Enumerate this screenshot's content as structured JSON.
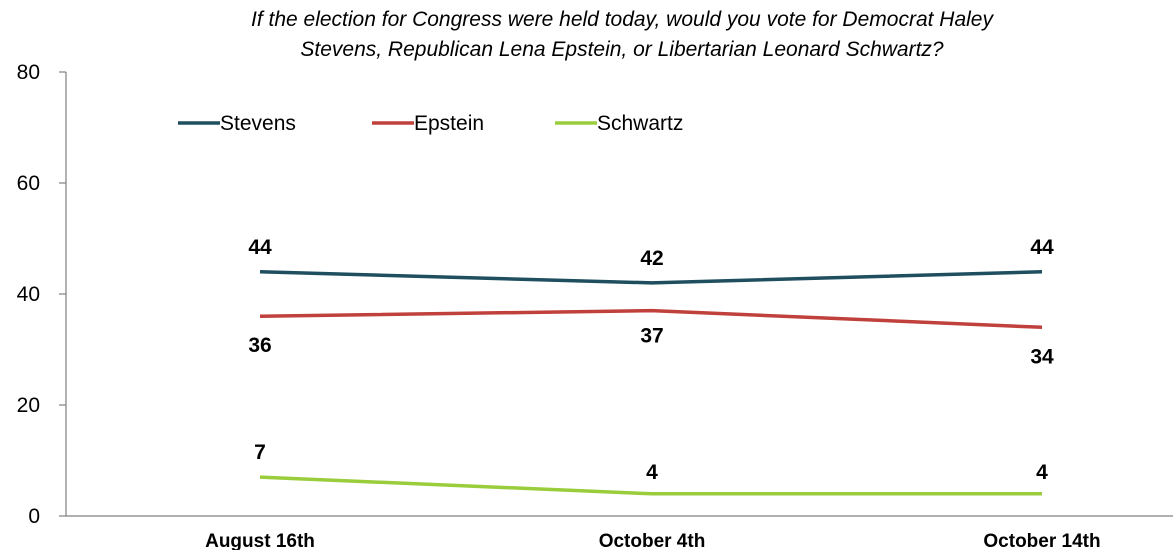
{
  "chart_data": {
    "type": "line",
    "title": "If the election for Congress were held today, would you vote for Democrat Haley Stevens, Republican Lena Epstein, or Libertarian Leonard Schwartz?",
    "title_lines": [
      "If the election for Congress were held today, would you vote for Democrat Haley",
      "Stevens, Republican Lena Epstein, or Libertarian Leonard Schwartz?"
    ],
    "categories": [
      "August 16th",
      "October 4th",
      "October 14th"
    ],
    "series": [
      {
        "name": "Stevens",
        "values": [
          44,
          42,
          44
        ],
        "color": "#1f4e5f"
      },
      {
        "name": "Epstein",
        "values": [
          36,
          37,
          34
        ],
        "color": "#c0403b"
      },
      {
        "name": "Schwartz",
        "values": [
          7,
          4,
          4
        ],
        "color": "#9acd3b"
      }
    ],
    "ylim": [
      0,
      80
    ],
    "yticks": [
      0,
      20,
      40,
      60,
      80
    ],
    "xlabel": "",
    "ylabel": "",
    "grid": false,
    "legend_position": "top-left"
  }
}
